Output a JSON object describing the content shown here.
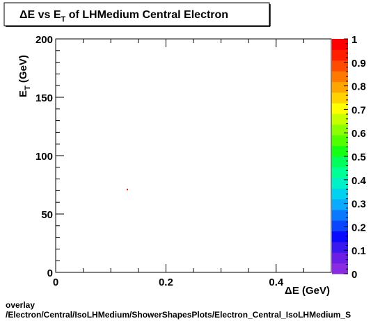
{
  "chart_data": {
    "type": "heatmap",
    "title": "ΔE vs E_T of LHMedium Central  Electron",
    "title_parts": {
      "before_subscript": "ΔE vs E",
      "subscript": "T",
      "after_subscript": " of LHMedium Central  Electron"
    },
    "xlabel": "ΔE (GeV)",
    "ylabel": "E_T (GeV)",
    "ylabel_parts": {
      "main": "E",
      "subscript": "T",
      "unit": " (GeV)"
    },
    "xlim": [
      0,
      0.5
    ],
    "ylim": [
      0,
      200
    ],
    "x_ticks": [
      0,
      0.2,
      0.4
    ],
    "x_tick_labels": [
      "0",
      "0.2",
      "0.4"
    ],
    "y_ticks": [
      0,
      50,
      100,
      150,
      200
    ],
    "y_tick_labels": [
      "0",
      "50",
      "100",
      "150",
      "200"
    ],
    "points": [
      {
        "x": 0.13,
        "y": 71,
        "z": 1
      }
    ],
    "colorbar": {
      "range": [
        0,
        1
      ],
      "ticks": [
        0,
        0.1,
        0.2,
        0.3,
        0.4,
        0.5,
        0.6,
        0.7,
        0.8,
        0.9,
        1
      ],
      "tick_labels": [
        "0",
        "0.1",
        "0.2",
        "0.3",
        "0.4",
        "0.5",
        "0.6",
        "0.7",
        "0.8",
        "0.9",
        "1"
      ],
      "colors": [
        "#8a2be2",
        "#6a1ee6",
        "#3a19ee",
        "#0a0aff",
        "#0a46ff",
        "#0a78ff",
        "#0aaaff",
        "#00d2f0",
        "#00f0c8",
        "#00ff96",
        "#00ff5a",
        "#14ff14",
        "#50ff00",
        "#8cff00",
        "#c8ff00",
        "#ffff00",
        "#ffd200",
        "#ffa500",
        "#ff7800",
        "#ff4b00",
        "#ff1e00",
        "#ff0000"
      ]
    },
    "grid": false,
    "legend": "none"
  },
  "footer": {
    "line1": "overlay",
    "line2": "/Electron/Central/IsoLHMedium/ShowerShapesPlots/Electron_Central_IsoLHMedium_S"
  }
}
